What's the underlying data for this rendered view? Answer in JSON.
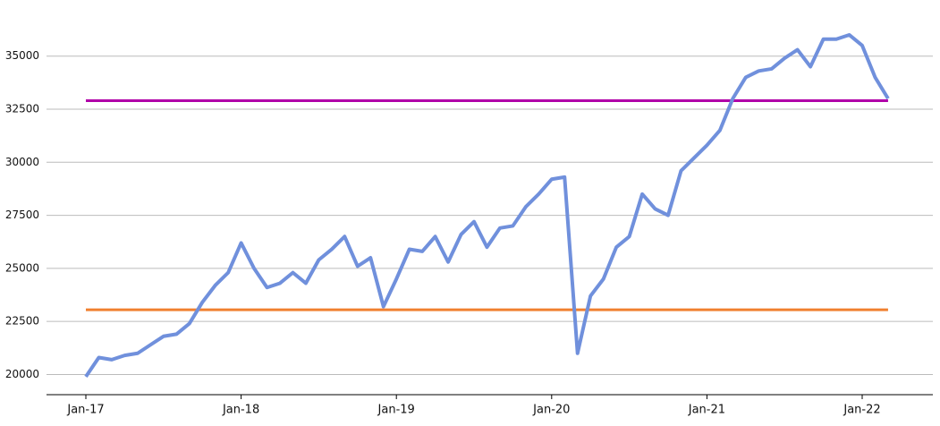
{
  "chart_data": {
    "type": "line",
    "categories": [
      "Jan-17",
      null,
      null,
      null,
      null,
      null,
      null,
      null,
      null,
      null,
      null,
      null,
      "Jan-18",
      null,
      null,
      null,
      null,
      null,
      null,
      null,
      null,
      null,
      null,
      null,
      "Jan-19",
      null,
      null,
      null,
      null,
      null,
      null,
      null,
      null,
      null,
      null,
      null,
      "Jan-20",
      null,
      null,
      null,
      null,
      null,
      null,
      null,
      null,
      null,
      null,
      null,
      "Jan-21",
      null,
      null,
      null,
      null,
      null,
      null,
      null,
      null,
      null,
      null,
      null,
      "Jan-22",
      null,
      null
    ],
    "series": [
      {
        "color": "#7090dc",
        "values": [
          19900,
          20800,
          20700,
          20900,
          21000,
          21400,
          21800,
          21900,
          22400,
          23400,
          24200,
          24800,
          26200,
          25000,
          24100,
          24300,
          24800,
          24300,
          25400,
          25900,
          26500,
          25100,
          25500,
          23200,
          24500,
          25900,
          25800,
          26500,
          25300,
          26600,
          27200,
          26000,
          26900,
          27000,
          27900,
          28500,
          29200,
          29300,
          21000,
          23700,
          24500,
          26000,
          26500,
          28500,
          27800,
          27500,
          29600,
          30200,
          30800,
          31500,
          33000,
          34000,
          34300,
          34400,
          34900,
          35300,
          34500,
          35800,
          35800,
          36000,
          35500,
          34000,
          33000
        ]
      }
    ],
    "hlines": [
      {
        "value": 32900,
        "color": "#b000a8"
      },
      {
        "value": 23050,
        "color": "#f08030"
      }
    ],
    "ylim": [
      19050,
      36800
    ],
    "yticks": [
      20000,
      22500,
      25000,
      27500,
      30000,
      32500,
      35000
    ],
    "grid": true
  }
}
